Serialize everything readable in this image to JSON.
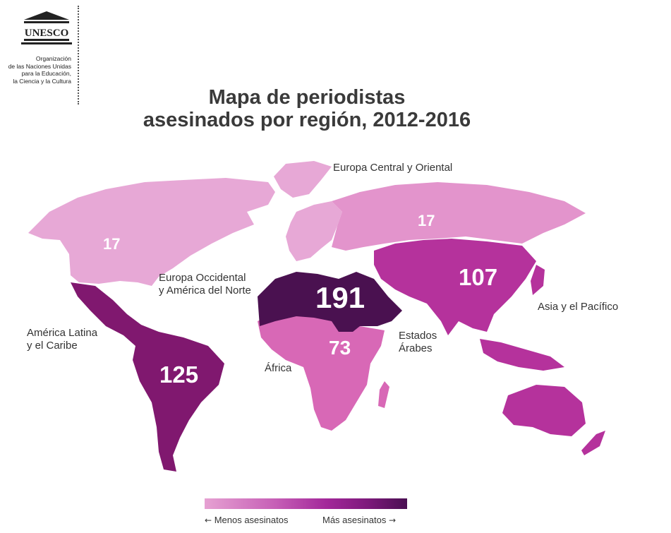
{
  "header": {
    "logo_text": "UNESCO",
    "org_lines": [
      "Organización",
      "de las Naciones Unidas",
      "para la Educación,",
      "la Ciencia y la Cultura"
    ]
  },
  "title_lines": [
    "Mapa de periodistas",
    "asesinados por región, 2012-2016"
  ],
  "regions": {
    "europa_central": {
      "label": "Europa Central y Oriental",
      "value": "17",
      "color": "#e394cc"
    },
    "europa_occidental": {
      "label_lines": [
        "Europa Occidental",
        "y América del Norte"
      ],
      "value": "17",
      "color": "#e7a8d6"
    },
    "america_latina": {
      "label_lines": [
        "América Latina",
        "y el Caribe"
      ],
      "value": "125",
      "color": "#80186f"
    },
    "africa": {
      "label": "África",
      "value": "73",
      "color": "#d868b6"
    },
    "estados_arabes": {
      "label_lines": [
        "Estados",
        "Árabes"
      ],
      "value": "191",
      "color": "#4a1150"
    },
    "asia_pacifico": {
      "label": "Asia y el Pacífico",
      "value": "107",
      "color": "#b5329c"
    }
  },
  "legend": {
    "less_label": "Menos asesinatos",
    "more_label": "Más asesinatos",
    "colors": [
      "#e6a1d2",
      "#c65fb6",
      "#a3289a",
      "#7e1a7c",
      "#4a0f52"
    ]
  }
}
